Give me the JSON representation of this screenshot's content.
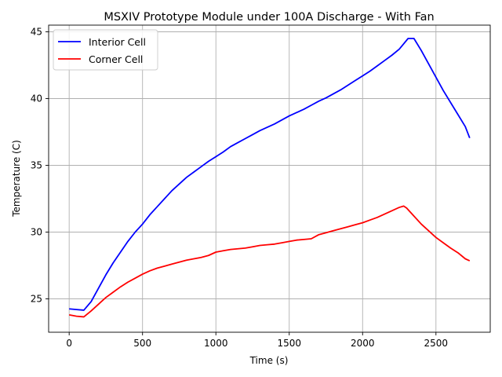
{
  "chart_data": {
    "type": "line",
    "title": "MSXIV Prototype Module under 100A Discharge - With Fan",
    "xlabel": "Time (s)",
    "ylabel": "Temperature (C)",
    "xlim": [
      -140,
      2870
    ],
    "ylim": [
      22.5,
      45.5
    ],
    "xticks": [
      0,
      500,
      1000,
      1500,
      2000,
      2500
    ],
    "yticks": [
      25,
      30,
      35,
      40,
      45
    ],
    "grid": true,
    "legend_position": "upper-left",
    "series": [
      {
        "name": "Interior Cell",
        "color": "#0000ff",
        "x": [
          0,
          50,
          100,
          150,
          200,
          250,
          300,
          350,
          400,
          450,
          500,
          550,
          600,
          650,
          700,
          750,
          800,
          850,
          900,
          950,
          1000,
          1050,
          1100,
          1150,
          1200,
          1250,
          1300,
          1350,
          1400,
          1450,
          1500,
          1550,
          1600,
          1650,
          1700,
          1750,
          1800,
          1850,
          1900,
          1950,
          2000,
          2050,
          2100,
          2150,
          2200,
          2250,
          2280,
          2310,
          2350,
          2400,
          2450,
          2500,
          2550,
          2600,
          2650,
          2700,
          2730
        ],
        "y": [
          24.25,
          24.2,
          24.15,
          24.8,
          25.8,
          26.8,
          27.7,
          28.5,
          29.3,
          30.0,
          30.6,
          31.3,
          31.9,
          32.5,
          33.1,
          33.6,
          34.1,
          34.5,
          34.9,
          35.3,
          35.65,
          36.0,
          36.4,
          36.7,
          37.0,
          37.3,
          37.6,
          37.85,
          38.1,
          38.4,
          38.7,
          38.95,
          39.2,
          39.5,
          39.8,
          40.05,
          40.35,
          40.65,
          41.0,
          41.35,
          41.7,
          42.05,
          42.45,
          42.85,
          43.25,
          43.7,
          44.1,
          44.5,
          44.5,
          43.6,
          42.6,
          41.6,
          40.6,
          39.7,
          38.8,
          37.9,
          37.05
        ]
      },
      {
        "name": "Corner Cell",
        "color": "#ff0000",
        "x": [
          0,
          50,
          100,
          150,
          200,
          250,
          300,
          350,
          400,
          450,
          500,
          550,
          600,
          650,
          700,
          750,
          800,
          850,
          900,
          950,
          1000,
          1050,
          1100,
          1150,
          1200,
          1250,
          1300,
          1350,
          1400,
          1450,
          1500,
          1550,
          1600,
          1650,
          1700,
          1750,
          1800,
          1850,
          1900,
          1950,
          2000,
          2050,
          2100,
          2150,
          2200,
          2250,
          2280,
          2300,
          2350,
          2400,
          2450,
          2500,
          2550,
          2600,
          2650,
          2700,
          2730
        ],
        "y": [
          23.8,
          23.7,
          23.65,
          24.1,
          24.6,
          25.1,
          25.5,
          25.9,
          26.25,
          26.55,
          26.85,
          27.1,
          27.3,
          27.45,
          27.6,
          27.75,
          27.9,
          28.0,
          28.1,
          28.25,
          28.5,
          28.6,
          28.7,
          28.75,
          28.8,
          28.9,
          29.0,
          29.05,
          29.1,
          29.2,
          29.3,
          29.4,
          29.45,
          29.5,
          29.8,
          29.95,
          30.1,
          30.25,
          30.4,
          30.55,
          30.7,
          30.9,
          31.1,
          31.35,
          31.6,
          31.85,
          31.95,
          31.8,
          31.2,
          30.6,
          30.1,
          29.6,
          29.2,
          28.8,
          28.45,
          28.0,
          27.85
        ]
      }
    ]
  }
}
